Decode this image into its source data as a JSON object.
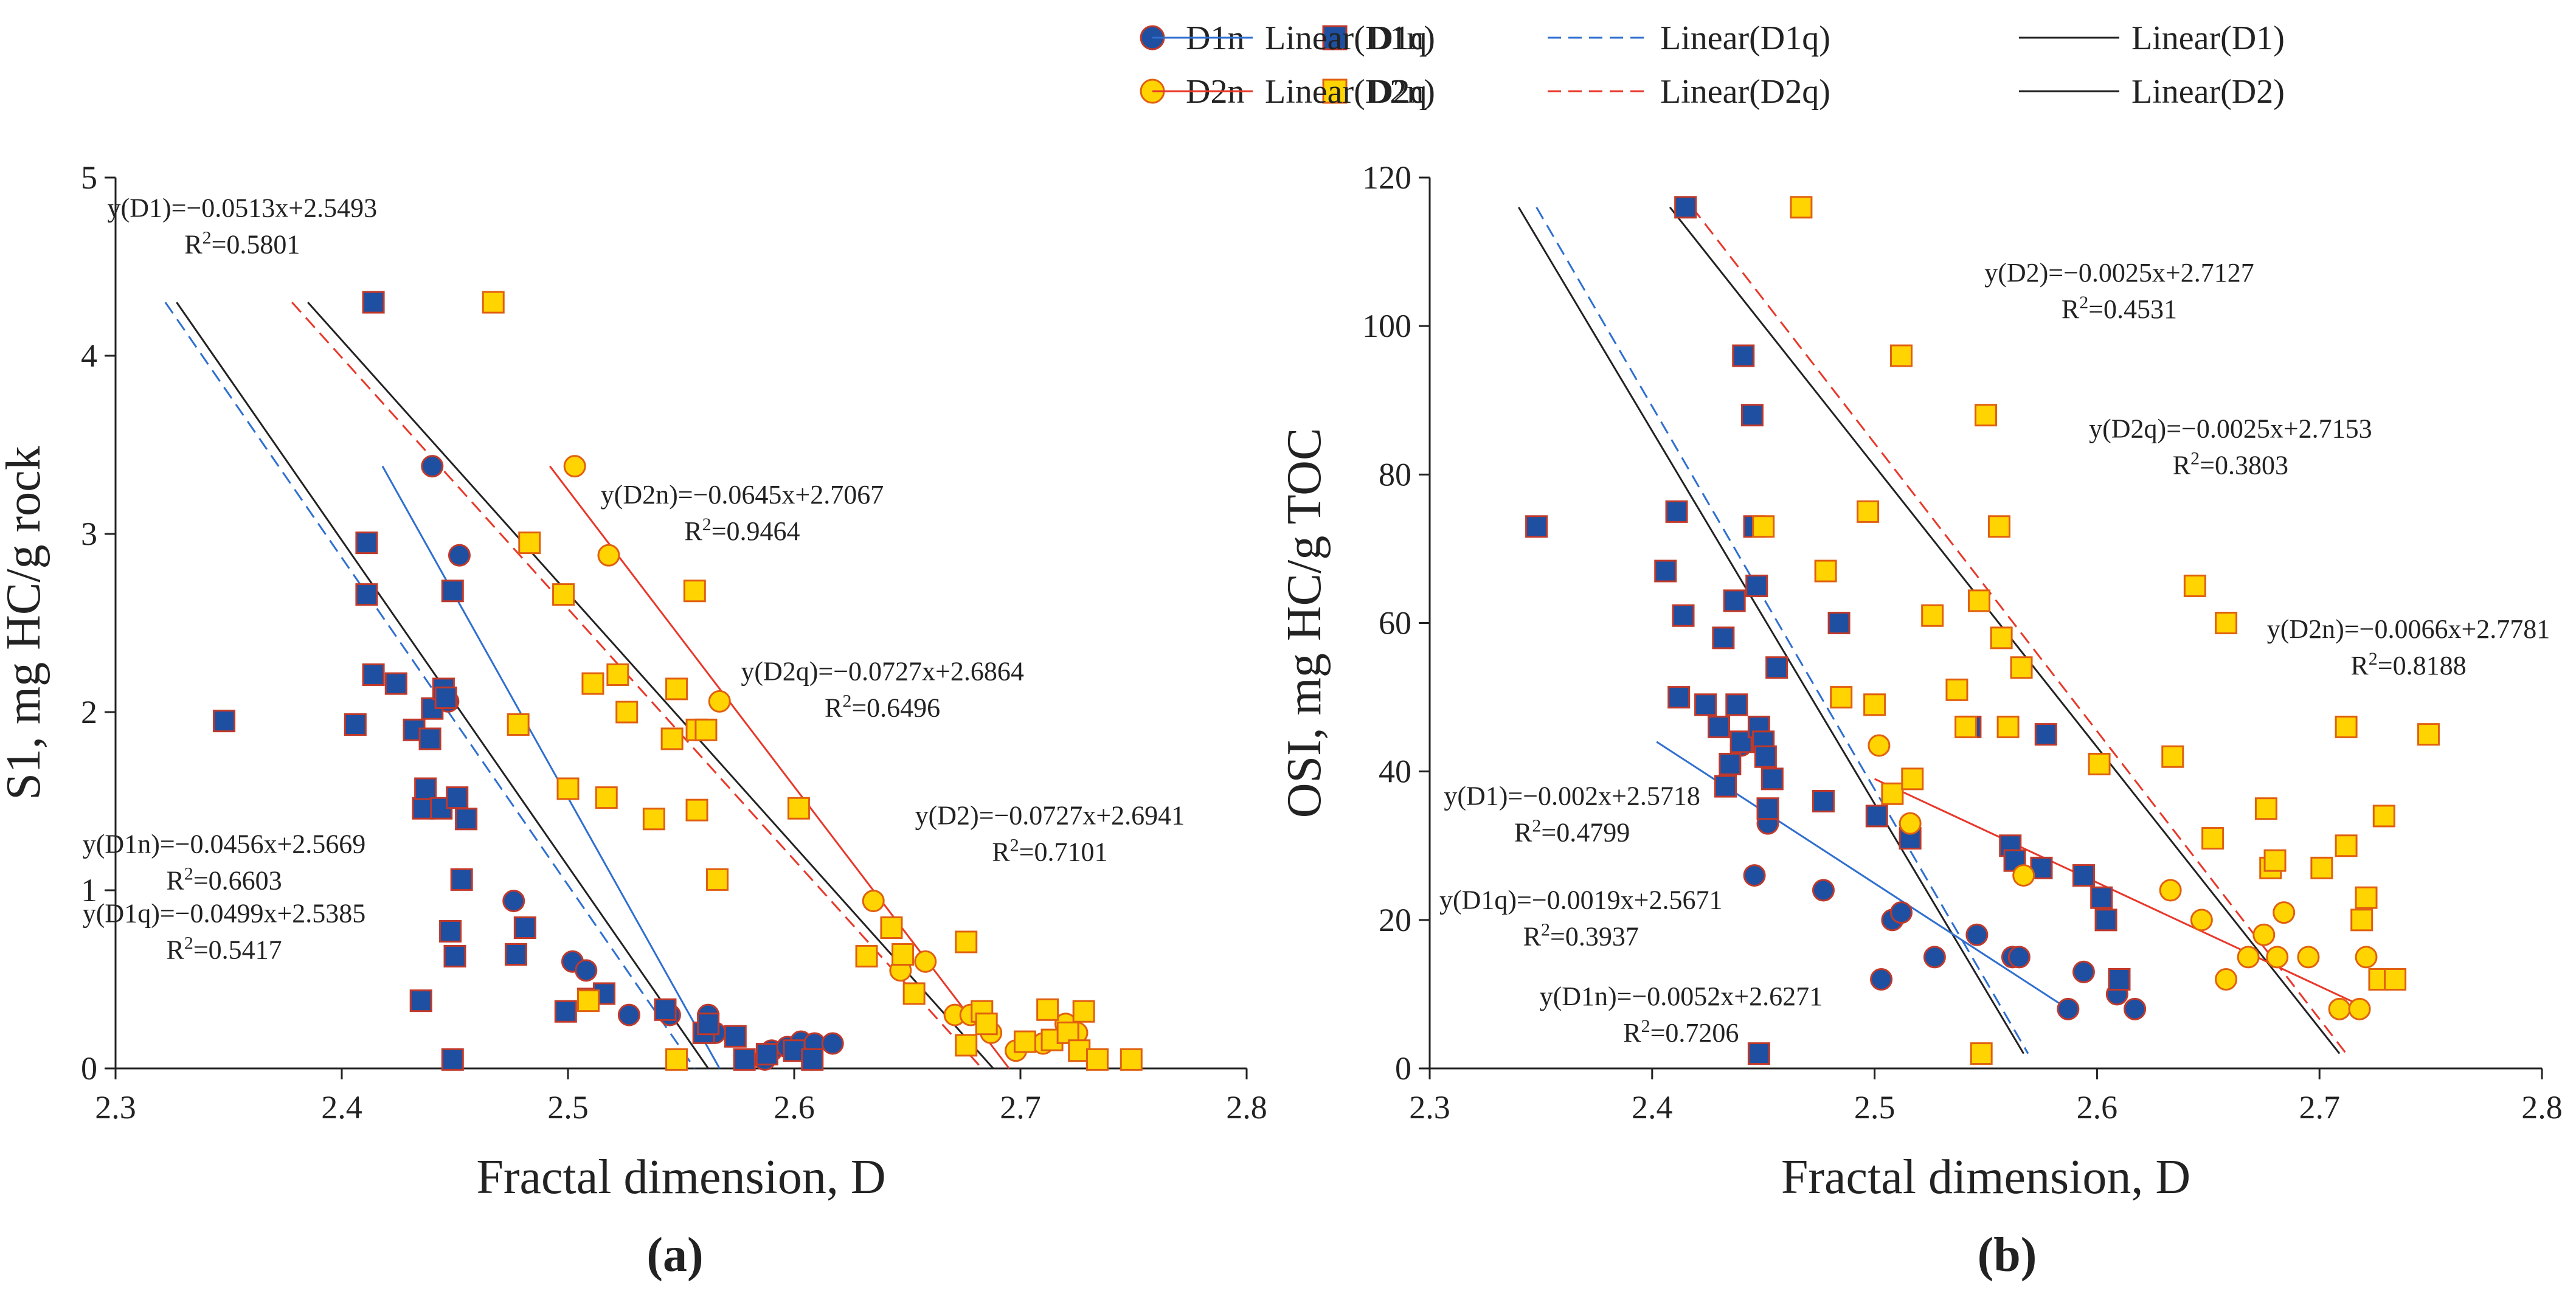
{
  "colors": {
    "d1_fill": "#1f4fa0",
    "d1_stroke": "#c0392b",
    "d2_fill": "#ffd400",
    "d2_stroke": "#e06010",
    "line_d1n": "#2f6fd0",
    "line_d1q": "#2f6fd0",
    "line_d1": "#222222",
    "line_d2n": "#e8382a",
    "line_d2q": "#e8382a",
    "line_d2": "#222222",
    "axis": "#222222"
  },
  "legend": {
    "items": [
      {
        "key": "D1n",
        "label": "D1n",
        "kind": "circle",
        "group": "d1"
      },
      {
        "key": "D1q",
        "label": "D1q",
        "kind": "square",
        "group": "d1"
      },
      {
        "key": "LD1n",
        "label": "Linear(D1n)",
        "kind": "line",
        "color_key": "line_d1n",
        "dash": false
      },
      {
        "key": "LD1q",
        "label": "Linear(D1q)",
        "kind": "line",
        "color_key": "line_d1q",
        "dash": true
      },
      {
        "key": "LD1",
        "label": "Linear(D1)",
        "kind": "line",
        "color_key": "line_d1",
        "dash": false
      },
      {
        "key": "D2n",
        "label": "D2n",
        "kind": "circle",
        "group": "d2"
      },
      {
        "key": "D2q",
        "label": "D2q",
        "kind": "square",
        "group": "d2"
      },
      {
        "key": "LD2n",
        "label": "Linear(D2n)",
        "kind": "line",
        "color_key": "line_d2n",
        "dash": false
      },
      {
        "key": "LD2q",
        "label": "Linear(D2q)",
        "kind": "line",
        "color_key": "line_d2q",
        "dash": true
      },
      {
        "key": "LD2",
        "label": "Linear(D2)",
        "kind": "line",
        "color_key": "line_d2",
        "dash": false
      }
    ]
  },
  "chart_data": [
    {
      "type": "scatter",
      "panel_label": "(a)",
      "xlabel": "Fractal dimension, D",
      "ylabel": "S1, mg HC/g rock",
      "xlim": [
        2.3,
        2.8
      ],
      "ylim": [
        0,
        5
      ],
      "xticks": [
        "2.3",
        "2.4",
        "2.5",
        "2.6",
        "2.7",
        "2.8"
      ],
      "yticks": [
        "0",
        "1",
        "2",
        "3",
        "4",
        "5"
      ],
      "xtick_values": [
        2.3,
        2.4,
        2.5,
        2.6,
        2.7,
        2.8
      ],
      "ytick_values": [
        0,
        1,
        2,
        3,
        4,
        5
      ],
      "series": [
        {
          "name": "D1n",
          "marker": "circle",
          "group": "d1",
          "x": [
            2.44,
            2.452,
            2.447,
            2.476,
            2.502,
            2.508,
            2.527,
            2.545,
            2.562,
            2.565,
            2.587,
            2.59,
            2.597,
            2.603,
            2.609,
            2.617
          ],
          "y": [
            3.38,
            2.88,
            2.06,
            0.94,
            0.6,
            0.55,
            0.3,
            0.3,
            0.3,
            0.2,
            0.05,
            0.1,
            0.12,
            0.15,
            0.14,
            0.14
          ]
        },
        {
          "name": "D1q",
          "marker": "square",
          "group": "d1",
          "x": [
            2.348,
            2.406,
            2.411,
            2.411,
            2.414,
            2.414,
            2.424,
            2.432,
            2.436,
            2.437,
            2.439,
            2.44,
            2.444,
            2.445,
            2.446,
            2.448,
            2.449,
            2.45,
            2.451,
            2.453,
            2.455,
            2.435,
            2.477,
            2.481,
            2.499,
            2.509,
            2.516,
            2.543,
            2.56,
            2.562,
            2.574,
            2.578,
            2.588,
            2.6,
            2.608,
            2.449
          ],
          "y": [
            1.95,
            1.93,
            2.95,
            2.66,
            2.21,
            4.3,
            2.16,
            1.9,
            1.46,
            1.57,
            1.85,
            2.02,
            1.46,
            2.13,
            2.08,
            0.77,
            2.68,
            0.63,
            1.52,
            1.06,
            1.4,
            0.38,
            0.64,
            0.79,
            0.32,
            0.39,
            0.42,
            0.33,
            0.2,
            0.25,
            0.18,
            0.05,
            0.08,
            0.1,
            0.05,
            0.05
          ]
        },
        {
          "name": "D2n",
          "marker": "circle",
          "group": "d2",
          "x": [
            2.503,
            2.518,
            2.567,
            2.635,
            2.647,
            2.658,
            2.671,
            2.678,
            2.683,
            2.687,
            2.698,
            2.71,
            2.72,
            2.725
          ],
          "y": [
            3.38,
            2.88,
            2.06,
            0.94,
            0.55,
            0.6,
            0.3,
            0.3,
            0.3,
            0.2,
            0.1,
            0.14,
            0.25,
            0.2
          ]
        },
        {
          "name": "D2q",
          "marker": "square",
          "group": "d2",
          "x": [
            2.467,
            2.478,
            2.483,
            2.498,
            2.5,
            2.509,
            2.511,
            2.517,
            2.522,
            2.526,
            2.538,
            2.546,
            2.548,
            2.556,
            2.557,
            2.557,
            2.561,
            2.566,
            2.602,
            2.632,
            2.643,
            2.648,
            2.653,
            2.676,
            2.676,
            2.683,
            2.685,
            2.702,
            2.712,
            2.714,
            2.721,
            2.726,
            2.728,
            2.734,
            2.749,
            2.548
          ],
          "y": [
            4.3,
            1.93,
            2.95,
            2.66,
            1.57,
            0.38,
            2.16,
            1.52,
            2.21,
            2.0,
            1.4,
            1.85,
            2.13,
            2.68,
            1.9,
            1.45,
            1.9,
            1.06,
            1.46,
            0.63,
            0.79,
            0.64,
            0.42,
            0.71,
            0.13,
            0.32,
            0.25,
            0.15,
            0.33,
            0.16,
            0.2,
            0.1,
            0.32,
            0.05,
            0.05,
            0.05
          ]
        }
      ],
      "fit_lines": [
        {
          "key": "LD1",
          "color_key": "line_d1",
          "dash": false,
          "x": [
            2.327,
            2.562
          ],
          "y": [
            4.3,
            0.0
          ]
        },
        {
          "key": "LD1q",
          "color_key": "line_d1q",
          "dash": true,
          "x": [
            2.322,
            2.556
          ],
          "y": [
            4.3,
            0.0
          ]
        },
        {
          "key": "LD1n",
          "color_key": "line_d1n",
          "dash": false,
          "x": [
            2.418,
            2.567
          ],
          "y": [
            3.38,
            0.0
          ]
        },
        {
          "key": "LD2",
          "color_key": "line_d2",
          "dash": false,
          "x": [
            2.385,
            2.688
          ],
          "y": [
            4.3,
            0.0
          ]
        },
        {
          "key": "LD2q",
          "color_key": "line_d2q",
          "dash": true,
          "x": [
            2.378,
            2.683
          ],
          "y": [
            4.3,
            0.0
          ]
        },
        {
          "key": "LD2n",
          "color_key": "line_d2n",
          "dash": false,
          "x": [
            2.492,
            2.695
          ],
          "y": [
            3.38,
            0.0
          ]
        }
      ],
      "annotations": [
        {
          "eq": "y(D1)=−0.0513x+2.5493",
          "r2": "0.5801",
          "x": 2.356,
          "y": 4.78
        },
        {
          "eq": "y(D2n)=−0.0645x+2.7067",
          "r2": "0.9464",
          "x": 2.577,
          "y": 3.17
        },
        {
          "eq": "y(D2q)=−0.0727x+2.6864",
          "r2": "0.6496",
          "x": 2.639,
          "y": 2.18
        },
        {
          "eq": "y(D2)=−0.0727x+2.6941",
          "r2": "0.7101",
          "x": 2.713,
          "y": 1.37
        },
        {
          "eq": "y(D1n)=−0.0456x+2.5669",
          "r2": "0.6603",
          "x": 2.348,
          "y": 1.21
        },
        {
          "eq": "y(D1q)=−0.0499x+2.5385",
          "r2": "0.5417",
          "x": 2.348,
          "y": 0.82
        }
      ]
    },
    {
      "type": "scatter",
      "panel_label": "(b)",
      "xlabel": "Fractal dimension, D",
      "ylabel": "OSI, mg HC/g TOC",
      "xlim": [
        2.3,
        2.8
      ],
      "ylim": [
        0,
        120
      ],
      "xticks": [
        "2.3",
        "2.4",
        "2.5",
        "2.6",
        "2.7",
        "2.8"
      ],
      "yticks": [
        "0",
        "20",
        "40",
        "60",
        "80",
        "100",
        "120"
      ],
      "xtick_values": [
        2.3,
        2.4,
        2.5,
        2.6,
        2.7,
        2.8
      ],
      "ytick_values": [
        0,
        20,
        40,
        60,
        80,
        100,
        120
      ],
      "series": [
        {
          "name": "D1n",
          "marker": "circle",
          "group": "d1",
          "x": [
            2.44,
            2.446,
            2.452,
            2.477,
            2.503,
            2.508,
            2.512,
            2.527,
            2.546,
            2.562,
            2.565,
            2.587,
            2.594,
            2.609,
            2.617
          ],
          "y": [
            43.5,
            26,
            33,
            24,
            12,
            20,
            21,
            15,
            18,
            15,
            15,
            8,
            13,
            10,
            8
          ]
        },
        {
          "name": "D1q",
          "marker": "square",
          "group": "d1",
          "x": [
            2.348,
            2.406,
            2.411,
            2.412,
            2.414,
            2.415,
            2.424,
            2.43,
            2.432,
            2.433,
            2.435,
            2.437,
            2.438,
            2.44,
            2.441,
            2.445,
            2.446,
            2.447,
            2.448,
            2.45,
            2.451,
            2.452,
            2.454,
            2.456,
            2.477,
            2.484,
            2.501,
            2.516,
            2.543,
            2.561,
            2.563,
            2.575,
            2.577,
            2.594,
            2.602,
            2.604,
            2.61,
            2.448
          ],
          "y": [
            73,
            67,
            75,
            50,
            61,
            116,
            49,
            46,
            58,
            38,
            41,
            63,
            49,
            44,
            96,
            88,
            73,
            65,
            46,
            44,
            42,
            35,
            39,
            54,
            36,
            60,
            34,
            31,
            46,
            30,
            28,
            27,
            45,
            26,
            23,
            20,
            12,
            2
          ]
        },
        {
          "name": "D2n",
          "marker": "circle",
          "group": "d2",
          "x": [
            2.502,
            2.516,
            2.567,
            2.633,
            2.647,
            2.658,
            2.668,
            2.675,
            2.681,
            2.684,
            2.695,
            2.709,
            2.718,
            2.721
          ],
          "y": [
            43.5,
            33,
            26,
            24,
            20,
            12,
            15,
            18,
            15,
            21,
            15,
            8,
            8,
            15
          ]
        },
        {
          "name": "D2q",
          "marker": "square",
          "group": "d2",
          "x": [
            2.467,
            2.478,
            2.485,
            2.497,
            2.5,
            2.508,
            2.512,
            2.517,
            2.526,
            2.537,
            2.541,
            2.547,
            2.55,
            2.556,
            2.557,
            2.56,
            2.566,
            2.601,
            2.634,
            2.644,
            2.652,
            2.658,
            2.676,
            2.678,
            2.68,
            2.701,
            2.712,
            2.712,
            2.719,
            2.721,
            2.727,
            2.729,
            2.734,
            2.749,
            2.548,
            2.45
          ],
          "y": [
            116,
            67,
            50,
            75,
            49,
            37,
            96,
            39,
            61,
            51,
            46,
            63,
            88,
            73,
            58,
            46,
            54,
            41,
            42,
            65,
            31,
            60,
            35,
            27,
            28,
            27,
            30,
            46,
            20,
            23,
            12,
            34,
            12,
            45,
            2,
            73
          ]
        }
      ],
      "fit_lines": [
        {
          "key": "LD1",
          "color_key": "line_d1",
          "dash": false,
          "x": [
            2.34,
            2.567
          ],
          "y": [
            116,
            2
          ]
        },
        {
          "key": "LD1q",
          "color_key": "line_d1q",
          "dash": true,
          "x": [
            2.348,
            2.569
          ],
          "y": [
            116,
            2
          ]
        },
        {
          "key": "LD1n",
          "color_key": "line_d1n",
          "dash": false,
          "x": [
            2.402,
            2.587
          ],
          "y": [
            44,
            8
          ]
        },
        {
          "key": "LD2",
          "color_key": "line_d2",
          "dash": false,
          "x": [
            2.408,
            2.709
          ],
          "y": [
            116,
            2
          ]
        },
        {
          "key": "LD2q",
          "color_key": "line_d2q",
          "dash": true,
          "x": [
            2.418,
            2.712
          ],
          "y": [
            116,
            2
          ]
        },
        {
          "key": "LD2n",
          "color_key": "line_d2n",
          "dash": false,
          "x": [
            2.5,
            2.722
          ],
          "y": [
            39,
            8
          ]
        }
      ],
      "annotations": [
        {
          "eq": "y(D2)=−0.0025x+2.7127",
          "r2": "0.4531",
          "x": 2.61,
          "y": 106
        },
        {
          "eq": "y(D2q)=−0.0025x+2.7153",
          "r2": "0.3803",
          "x": 2.66,
          "y": 85
        },
        {
          "eq": "y(D2n)=−0.0066x+2.7781",
          "r2": "0.8188",
          "x": 2.74,
          "y": 58
        },
        {
          "eq": "y(D1)=−0.002x+2.5718",
          "r2": "0.4799",
          "x": 2.364,
          "y": 35.5
        },
        {
          "eq": "y(D1q)=−0.0019x+2.5671",
          "r2": "0.3937",
          "x": 2.368,
          "y": 21.5
        },
        {
          "eq": "y(D1n)=−0.0052x+2.6271",
          "r2": "0.7206",
          "x": 2.413,
          "y": 8.5
        }
      ]
    }
  ]
}
